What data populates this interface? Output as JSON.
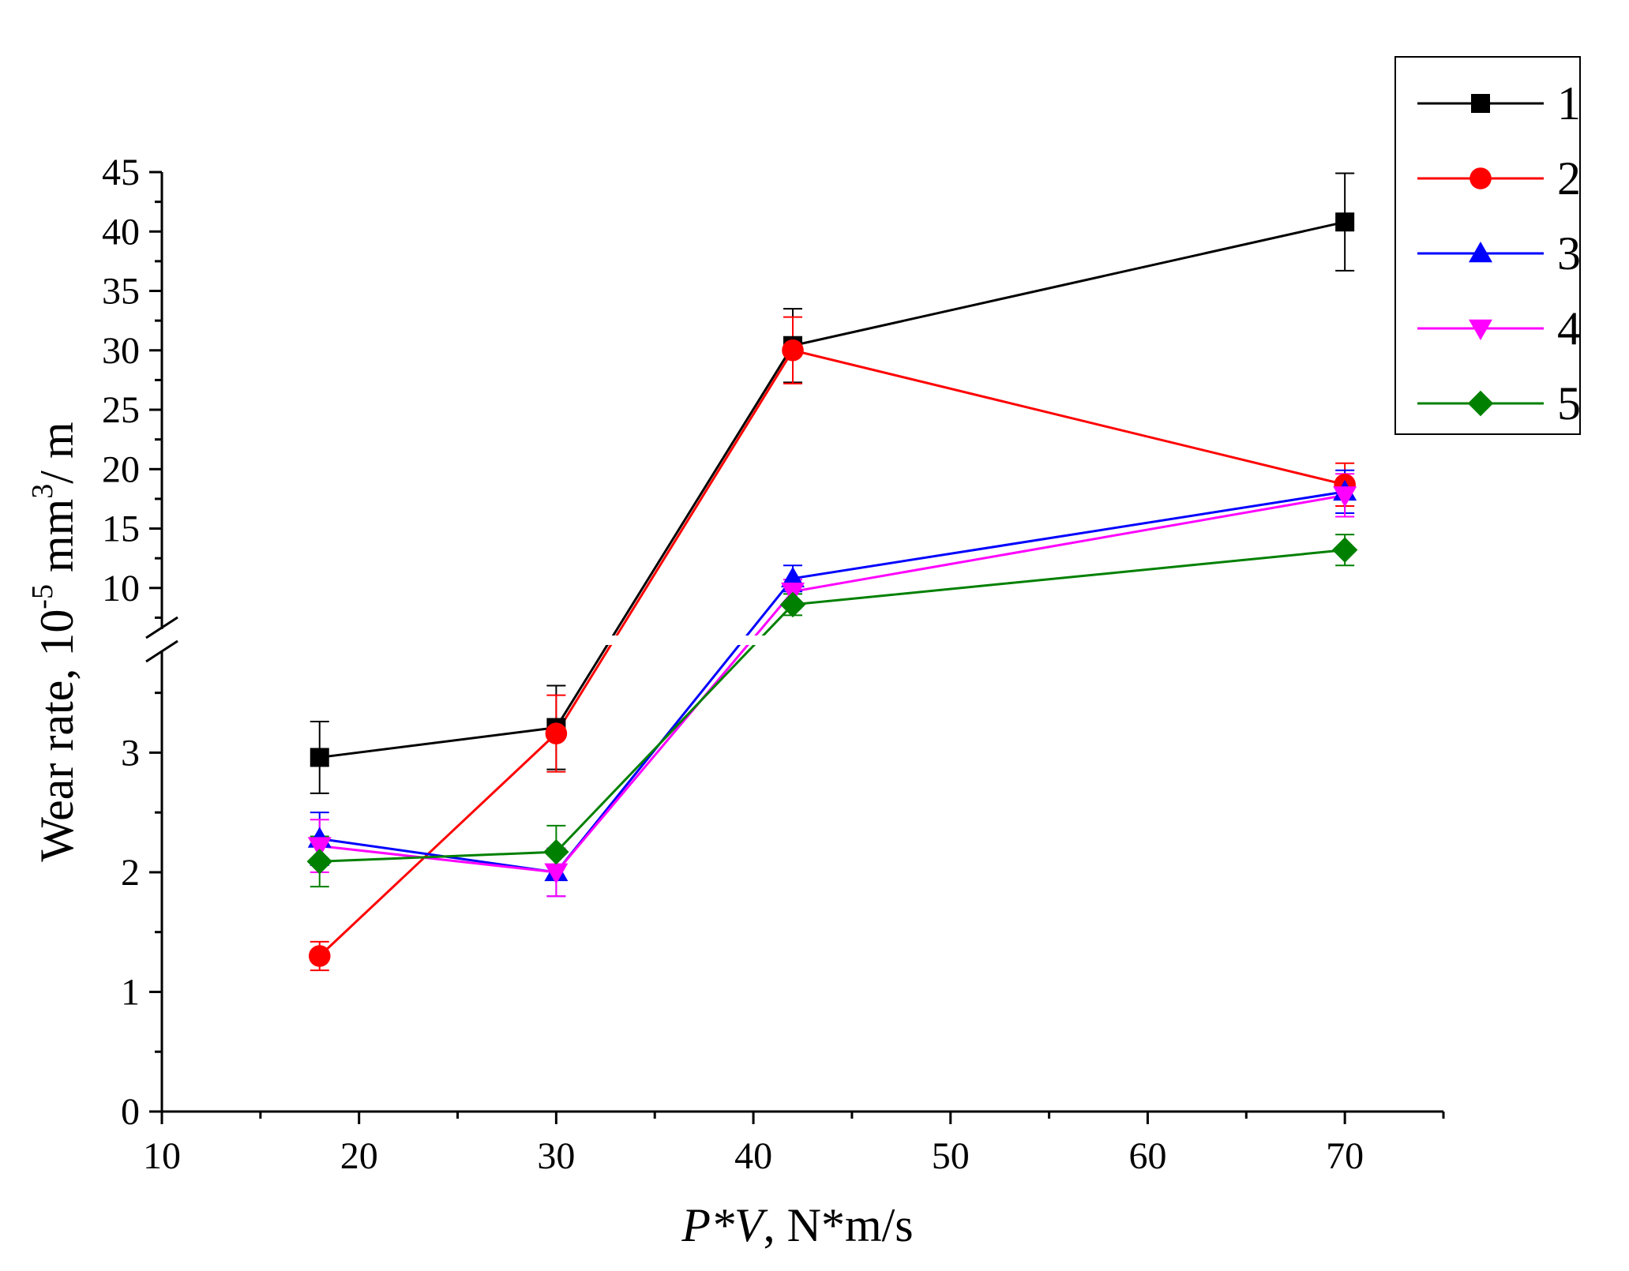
{
  "chart_data": {
    "type": "line",
    "title": "",
    "xlabel_italic": "P*V",
    "xlabel_rest": ", N*m/s",
    "ylabel_main": "Wear rate, 10",
    "ylabel_exp1": "-5",
    "ylabel_mid": " mm",
    "ylabel_exp2": "3",
    "ylabel_end": "/ m",
    "x_axis": {
      "range": [
        10,
        75
      ],
      "ticks": [
        10,
        20,
        30,
        40,
        50,
        60,
        70
      ],
      "tick_labels": [
        "10",
        "20",
        "30",
        "40",
        "50",
        "60",
        "70"
      ],
      "minor_ticks": [
        15,
        25,
        35,
        45,
        55,
        65,
        75
      ]
    },
    "y_axis_lower": {
      "range": [
        0,
        3.9
      ],
      "ticks": [
        0,
        1,
        2,
        3
      ],
      "tick_labels": [
        "0",
        "1",
        "2",
        "3"
      ],
      "minor_ticks": [
        0.5,
        1.5,
        2.5,
        3.5
      ]
    },
    "y_axis_upper": {
      "range": [
        6,
        45
      ],
      "ticks": [
        10,
        15,
        20,
        25,
        30,
        35,
        40,
        45
      ],
      "tick_labels": [
        "10",
        "15",
        "20",
        "25",
        "30",
        "35",
        "40",
        "45"
      ],
      "minor_ticks": [
        7.5,
        12.5,
        17.5,
        22.5,
        27.5,
        32.5,
        37.5,
        42.5
      ]
    },
    "axis_break": "between 3.9 and 6",
    "legend_position": "top-right",
    "x": [
      18,
      30,
      42,
      70
    ],
    "series": [
      {
        "name": "1",
        "color": "#000000",
        "marker": "square",
        "values": [
          2.96,
          3.21,
          30.4,
          40.8
        ],
        "errors": [
          0.3,
          0.35,
          3.1,
          4.1
        ]
      },
      {
        "name": "2",
        "color": "#ff0000",
        "marker": "circle",
        "values": [
          1.3,
          3.16,
          30.0,
          18.7
        ],
        "errors": [
          0.12,
          0.32,
          2.8,
          1.8
        ]
      },
      {
        "name": "3",
        "color": "#0000ff",
        "marker": "triangle-up",
        "values": [
          2.28,
          2.0,
          10.8,
          18.1
        ],
        "errors": [
          0.22,
          0.2,
          1.1,
          1.8
        ]
      },
      {
        "name": "4",
        "color": "#ff00ff",
        "marker": "triangle-down",
        "values": [
          2.22,
          2.0,
          9.7,
          17.8
        ],
        "errors": [
          0.22,
          0.2,
          1.0,
          1.8
        ]
      },
      {
        "name": "5",
        "color": "#008000",
        "marker": "diamond",
        "values": [
          2.09,
          2.17,
          8.6,
          13.2
        ],
        "errors": [
          0.21,
          0.22,
          0.9,
          1.3
        ]
      }
    ]
  }
}
